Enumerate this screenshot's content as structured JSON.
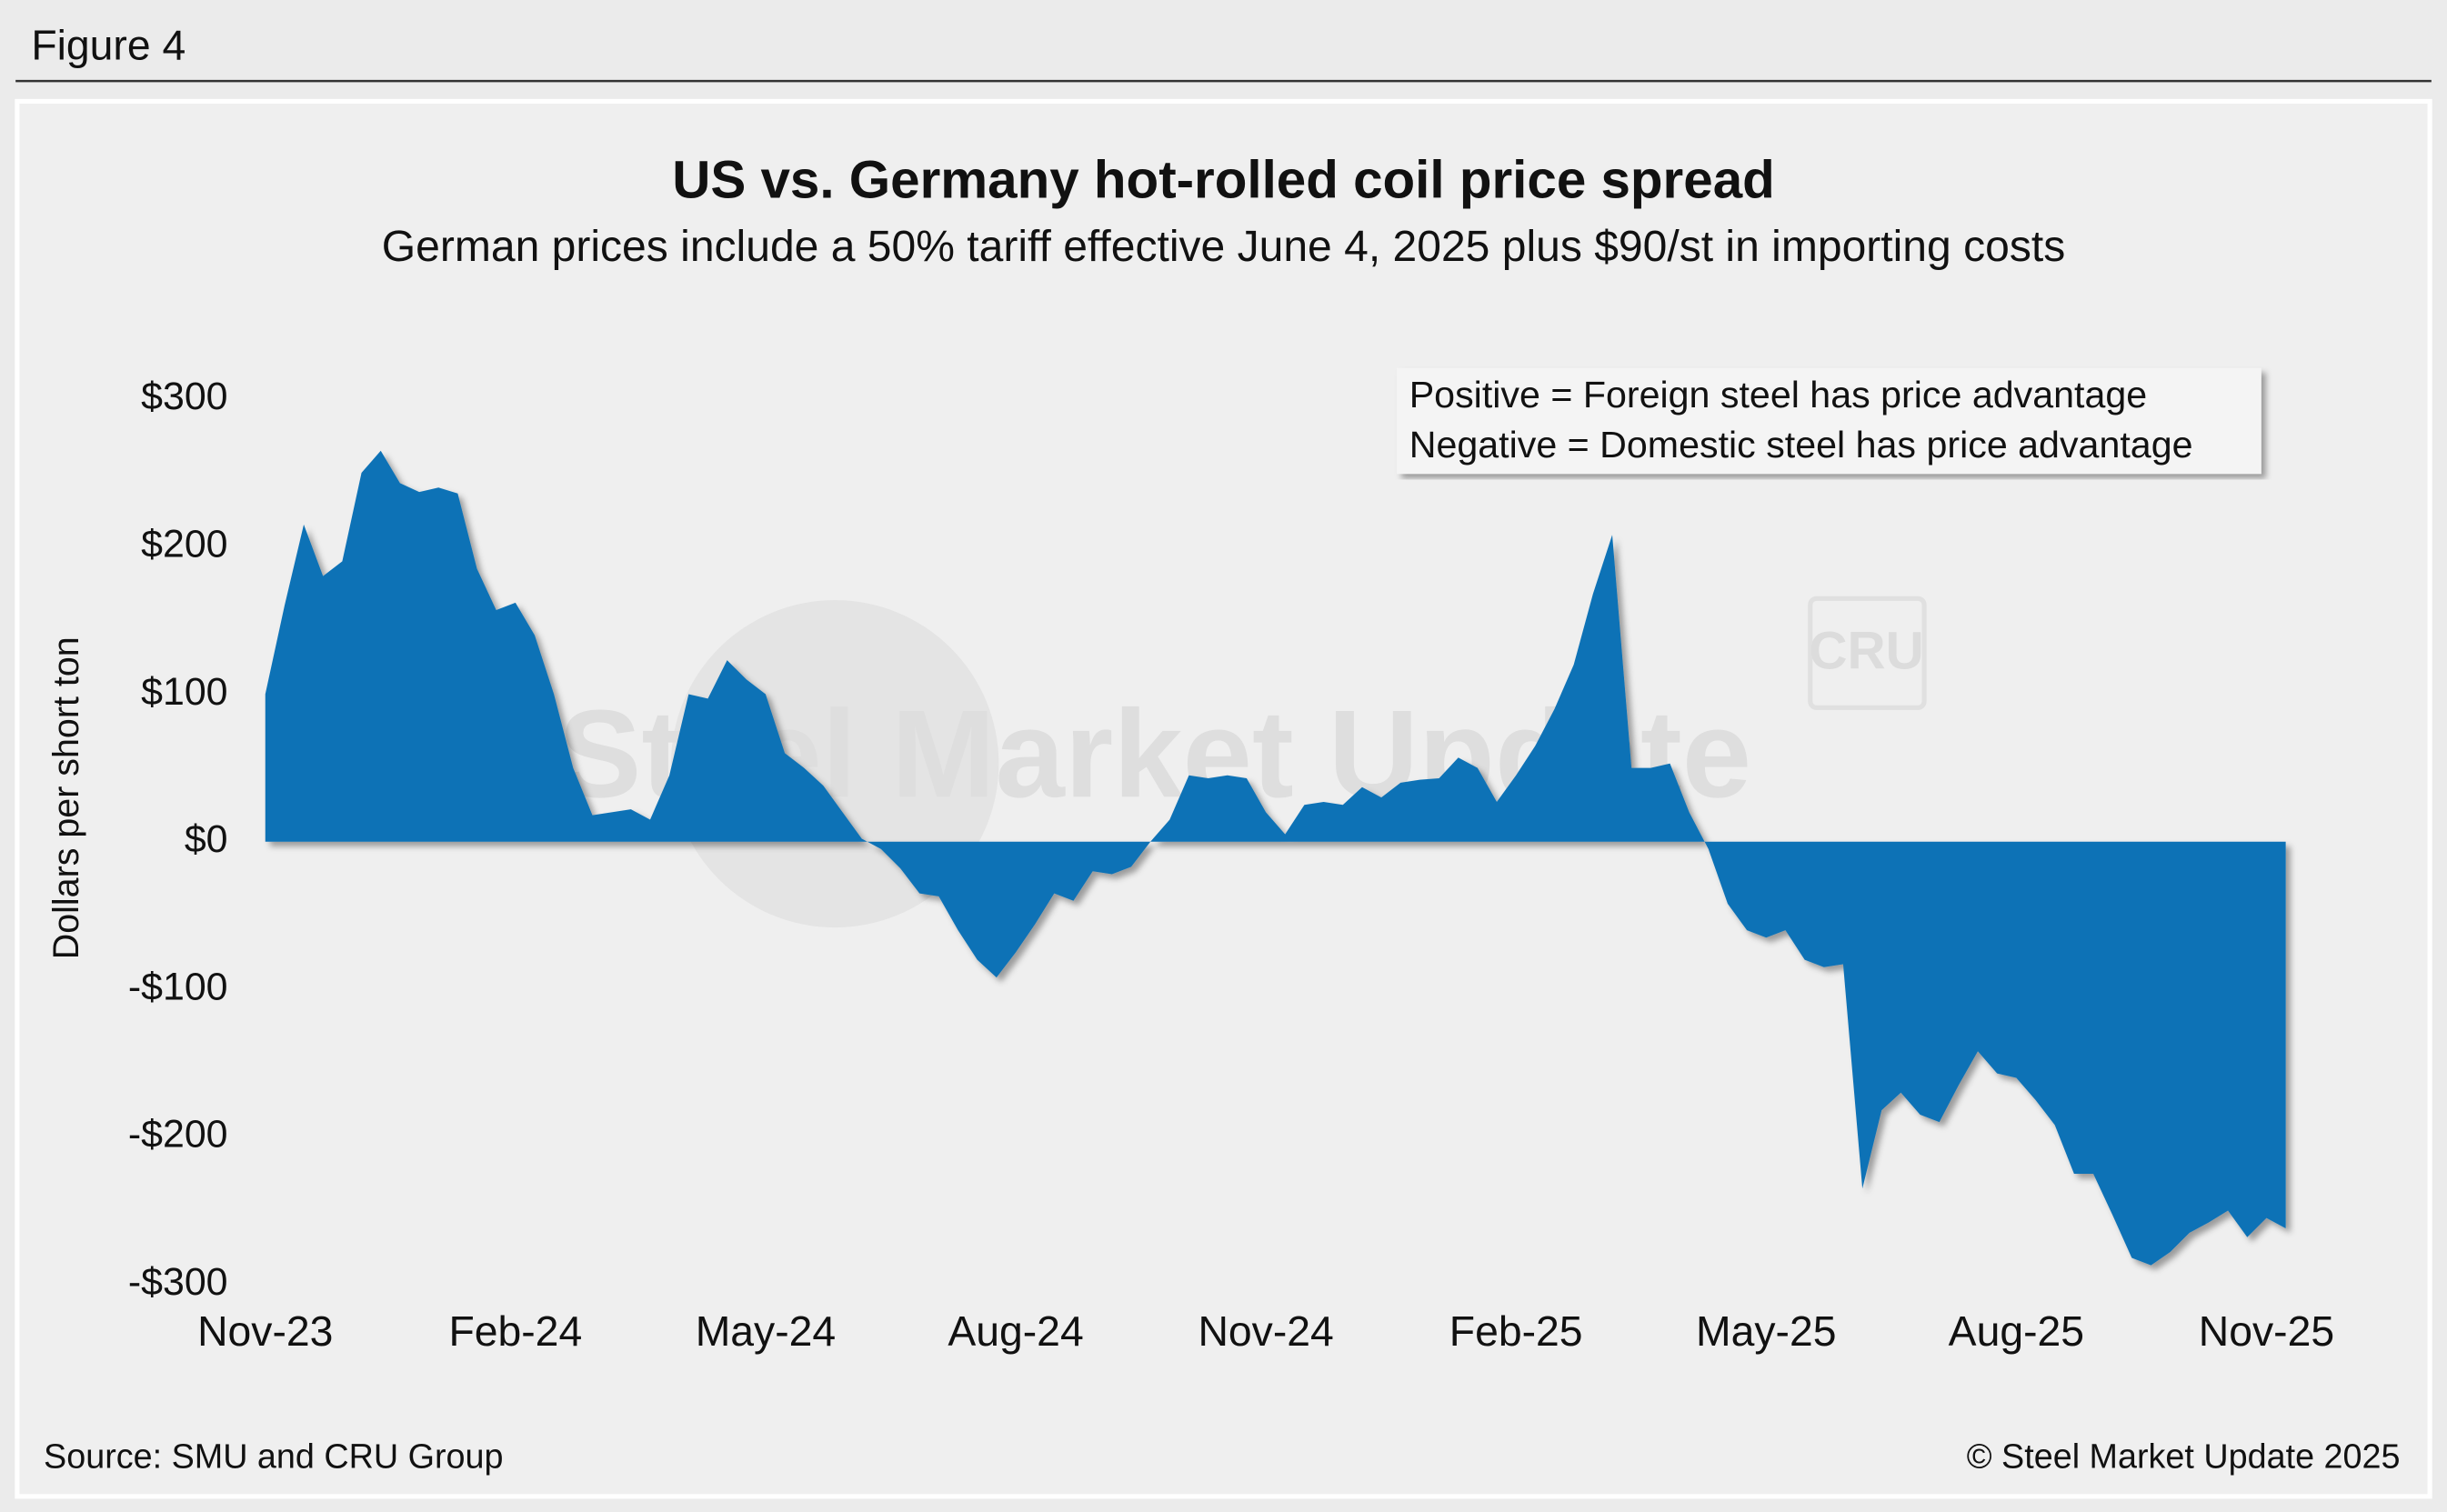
{
  "header": "Figure 4",
  "chart_data": {
    "type": "area",
    "title": "US vs. Germany hot-rolled coil price spread",
    "subtitle": "German prices include a 50% tariff effective June 4, 2025 plus $90/st in importing costs",
    "y_label": "Dollars per short ton",
    "annotations": [
      "Positive = Foreign steel has price advantage",
      "Negative = Domestic steel has price advantage"
    ],
    "watermark": [
      "Steel Market Update",
      "CRU"
    ],
    "source": "Source: SMU and CRU Group",
    "copyright": "© Steel Market Update 2025",
    "color": "#1072b6",
    "categories": [
      "Nov-23",
      null,
      null,
      null,
      null,
      null,
      null,
      null,
      null,
      null,
      null,
      null,
      null,
      "Feb-24",
      null,
      null,
      null,
      null,
      null,
      null,
      null,
      null,
      null,
      null,
      null,
      null,
      "May-24",
      null,
      null,
      null,
      null,
      null,
      null,
      null,
      null,
      null,
      null,
      null,
      null,
      "Aug-24",
      null,
      null,
      null,
      null,
      null,
      null,
      null,
      null,
      null,
      null,
      null,
      null,
      "Nov-24",
      null,
      null,
      null,
      null,
      null,
      null,
      null,
      null,
      null,
      null,
      null,
      null,
      "Feb-25",
      null,
      null,
      null,
      null,
      null,
      null,
      null,
      null,
      null,
      null,
      null,
      null,
      "May-25",
      null,
      null,
      null,
      null,
      null,
      null,
      null,
      null,
      null,
      null,
      null,
      null,
      "Aug-25",
      null,
      null,
      null,
      null,
      null,
      null,
      null,
      null,
      null,
      null,
      null,
      null,
      "Nov-25",
      null
    ],
    "values": [
      100,
      160,
      215,
      180,
      190,
      250,
      265,
      243,
      237,
      240,
      236,
      185,
      157,
      162,
      140,
      100,
      50,
      18,
      20,
      22,
      15,
      45,
      100,
      97,
      123,
      110,
      100,
      60,
      50,
      38,
      20,
      2,
      -5,
      -18,
      -35,
      -37,
      -60,
      -80,
      -92,
      -75,
      -56,
      -35,
      -40,
      -20,
      -22,
      -17,
      0,
      15,
      45,
      43,
      45,
      43,
      20,
      5,
      25,
      27,
      25,
      37,
      30,
      40,
      42,
      43,
      57,
      50,
      27,
      45,
      65,
      90,
      120,
      168,
      208,
      50,
      50,
      53,
      20,
      -5,
      -42,
      -60,
      -65,
      -60,
      -80,
      -85,
      -83,
      -235,
      -182,
      -170,
      -185,
      -190,
      -165,
      -142,
      -157,
      -160,
      -175,
      -192,
      -225,
      -225,
      -253,
      -282,
      -287,
      -278,
      -265,
      -258,
      -250,
      -268,
      -255,
      -262
    ],
    "ylim": [
      -300,
      300
    ],
    "yticks": [
      {
        "value": -300,
        "label": "-$300"
      },
      {
        "value": -200,
        "label": "-$200"
      },
      {
        "value": -100,
        "label": "-$100"
      },
      {
        "value": 0,
        "label": "$0"
      },
      {
        "value": 100,
        "label": "$100"
      },
      {
        "value": 200,
        "label": "$200"
      },
      {
        "value": 300,
        "label": "$300"
      }
    ],
    "grid": false
  }
}
